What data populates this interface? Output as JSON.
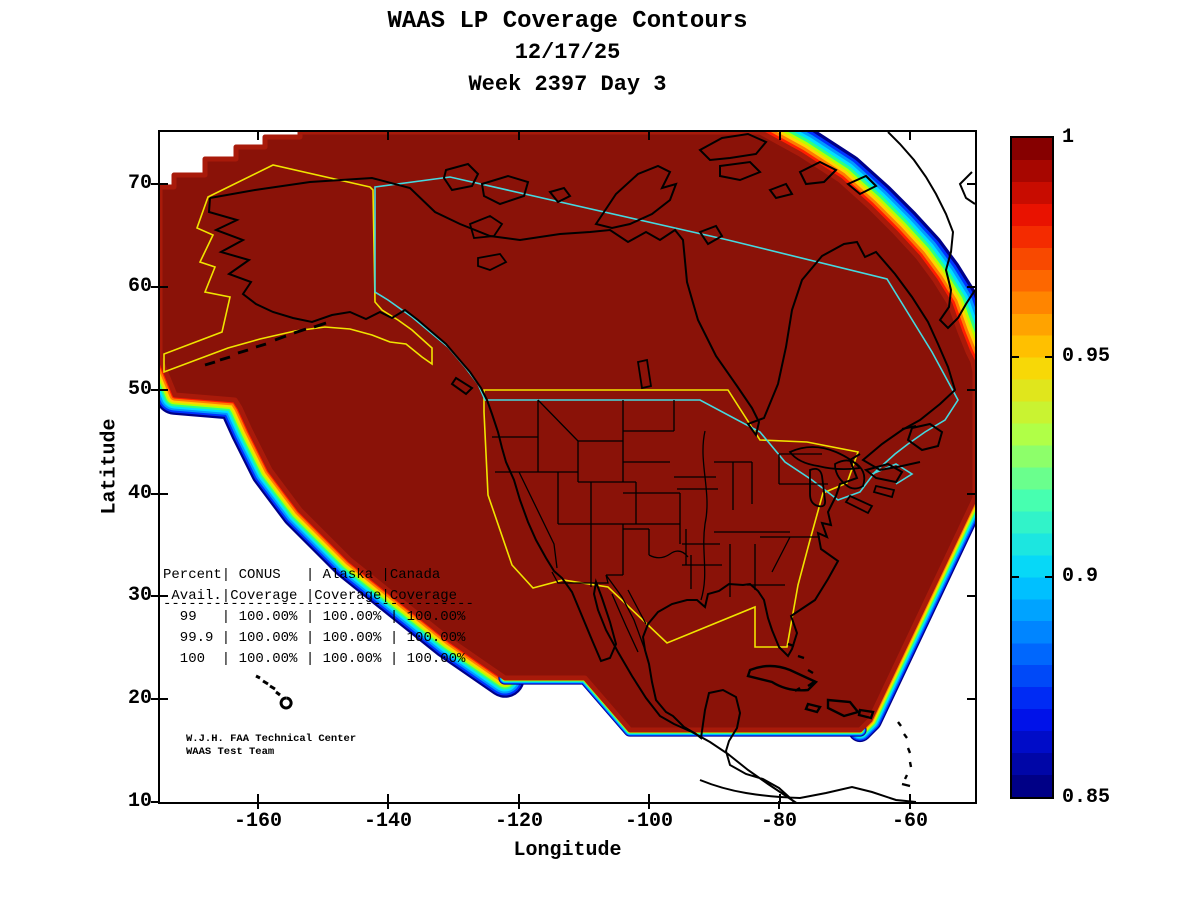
{
  "title": {
    "line1": "WAAS LP Coverage Contours",
    "line2": "12/17/25",
    "line3": "Week 2397 Day 3"
  },
  "axes": {
    "x": {
      "label": "Longitude",
      "ticks": [
        "-160",
        "-140",
        "-120",
        "-100",
        "-80",
        "-60"
      ]
    },
    "y": {
      "label": "Latitude",
      "ticks": [
        "70",
        "60",
        "50",
        "40",
        "30",
        "20",
        "10"
      ]
    }
  },
  "colorbar": {
    "ticks": [
      "1",
      "0.95",
      "0.9",
      "0.85"
    ],
    "stops_bottom_to_top": [
      "#000086",
      "#0013f0",
      "#0075ff",
      "#00d4ff",
      "#43ffb4",
      "#b4ff43",
      "#ffd400",
      "#ff7500",
      "#f01300",
      "#860000"
    ],
    "bands": 30
  },
  "overlay": {
    "table": {
      "lines": [
        "Percent| CONUS   | Alaska |Canada",
        " Avail.|Coverage |Coverage|Coverage",
        "-------------------------------------",
        "  99   | 100.00% | 100.00% | 100.00%",
        "  99.9 | 100.00% | 100.00% | 100.00%",
        "  100  | 100.00% | 100.00% | 100.00%"
      ]
    },
    "credit": [
      "W.J.H. FAA Technical Center",
      "WAAS Test Team"
    ]
  },
  "map": {
    "colors": {
      "coverage_fill": "#8a1208",
      "inner_band": "#a81a0a",
      "conus_alaska_boundary": "#f0e400",
      "canada_boundary": "#45d9e0",
      "coastline": "#000000",
      "background": "#ffffff",
      "steps_edge": "#2447ff"
    },
    "fringe": [
      {
        "color": "#000088",
        "width": 44
      },
      {
        "color": "#0033ff",
        "width": 39
      },
      {
        "color": "#0099ff",
        "width": 34.5
      },
      {
        "color": "#00e0ff",
        "width": 30
      },
      {
        "color": "#2dff84",
        "width": 25.5
      },
      {
        "color": "#b8ff00",
        "width": 21
      },
      {
        "color": "#ffd500",
        "width": 17
      },
      {
        "color": "#ff7c00",
        "width": 12.5
      },
      {
        "color": "#ff1e00",
        "width": 8
      }
    ]
  },
  "chart_data": {
    "type": "heatmap",
    "subtype": "filled-contour-coverage-map",
    "title": "WAAS LP Coverage Contours",
    "date": "12/17/25",
    "week": "2397",
    "day": "3",
    "xlabel": "Longitude",
    "ylabel": "Latitude",
    "xlim": [
      -175,
      -50
    ],
    "ylim": [
      10,
      75
    ],
    "x_ticks": [
      -160,
      -140,
      -120,
      -100,
      -80,
      -60
    ],
    "y_ticks": [
      10,
      20,
      30,
      40,
      50,
      60,
      70
    ],
    "colorbar": {
      "min": 0.85,
      "max": 1.0,
      "ticks": [
        0.85,
        0.9,
        0.95,
        1
      ],
      "colormap": "jet",
      "discrete_bands": 30
    },
    "coverage_value_interior": 1.0,
    "boundary_regions_outlined": [
      "CONUS (yellow)",
      "Alaska (yellow)",
      "Canada (cyan)"
    ],
    "coverage_table": {
      "columns": [
        "Percent Avail.",
        "CONUS Coverage",
        "Alaska Coverage",
        "Canada Coverage"
      ],
      "rows": [
        [
          "99",
          "100.00%",
          "100.00%",
          "100.00%"
        ],
        [
          "99.9",
          "100.00%",
          "100.00%",
          "100.00%"
        ],
        [
          "100",
          "100.00%",
          "100.00%",
          "100.00%"
        ]
      ]
    },
    "annotations": [
      "W.J.H. FAA Technical Center",
      "WAAS Test Team"
    ],
    "description": "Coverage = 1.0 (dark red) over nearly all of North America; jet-colormap contour fringe (red to blue, 1.0 down to 0.85) along Pacific southwest edge, Atlantic southeast edge and northeast corner near Greenland."
  }
}
